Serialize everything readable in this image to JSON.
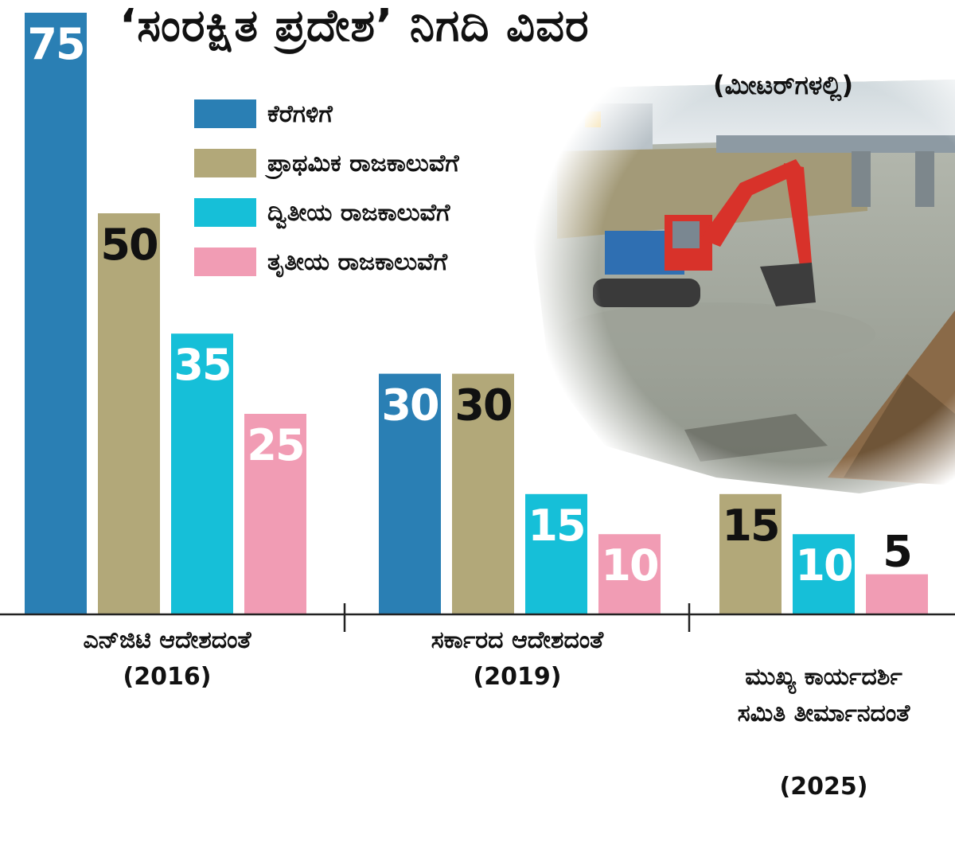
{
  "title": "‘ಸಂರಕ್ಷಿತ ಪ್ರದೇಶ’ ನಿಗದಿ ವಿವರ",
  "unit": "(ಮೀಟರ್‌ಗಳಲ್ಲಿ)",
  "colors": {
    "s1": "#2a7fb4",
    "s2": "#b2a879",
    "s3": "#16bfd8",
    "s4": "#f19cb4",
    "axis": "#222222"
  },
  "chart_data": {
    "type": "bar",
    "title": "‘ಸಂರಕ್ಷಿತ ಪ್ರದೇಶ’ ನಿಗದಿ ವಿವರ",
    "ylabel": "(ಮೀಟರ್‌ಗಳಲ್ಲಿ)",
    "ylim": [
      0,
      75
    ],
    "legend": "top-left",
    "grid": false,
    "categories": [
      {
        "name": "ಎನ್‌ಜಿಟಿ ಆದೇಶದಂತೆ",
        "year": "(2016)"
      },
      {
        "name": "ಸರ್ಕಾರದ ಆದೇಶದಂತೆ",
        "year": "(2019)"
      },
      {
        "name": "ಮುಖ್ಯ ಕಾರ್ಯದರ್ಶಿ\nಸಮಿತಿ ತೀರ್ಮಾನದಂತೆ",
        "year": "(2025)"
      }
    ],
    "series": [
      {
        "name": "ಕೆರೆಗಳಿಗೆ",
        "values": [
          75,
          30,
          null
        ]
      },
      {
        "name": "ಪ್ರಾಥಮಿಕ ರಾಜಕಾಲುವೆಗೆ",
        "values": [
          50,
          30,
          15
        ]
      },
      {
        "name": "ದ್ವಿತೀಯ ರಾಜಕಾಲುವೆಗೆ",
        "values": [
          35,
          15,
          10
        ]
      },
      {
        "name": "ತೃತೀಯ ರಾಜಕಾಲುವೆಗೆ",
        "values": [
          25,
          10,
          5
        ]
      }
    ]
  }
}
